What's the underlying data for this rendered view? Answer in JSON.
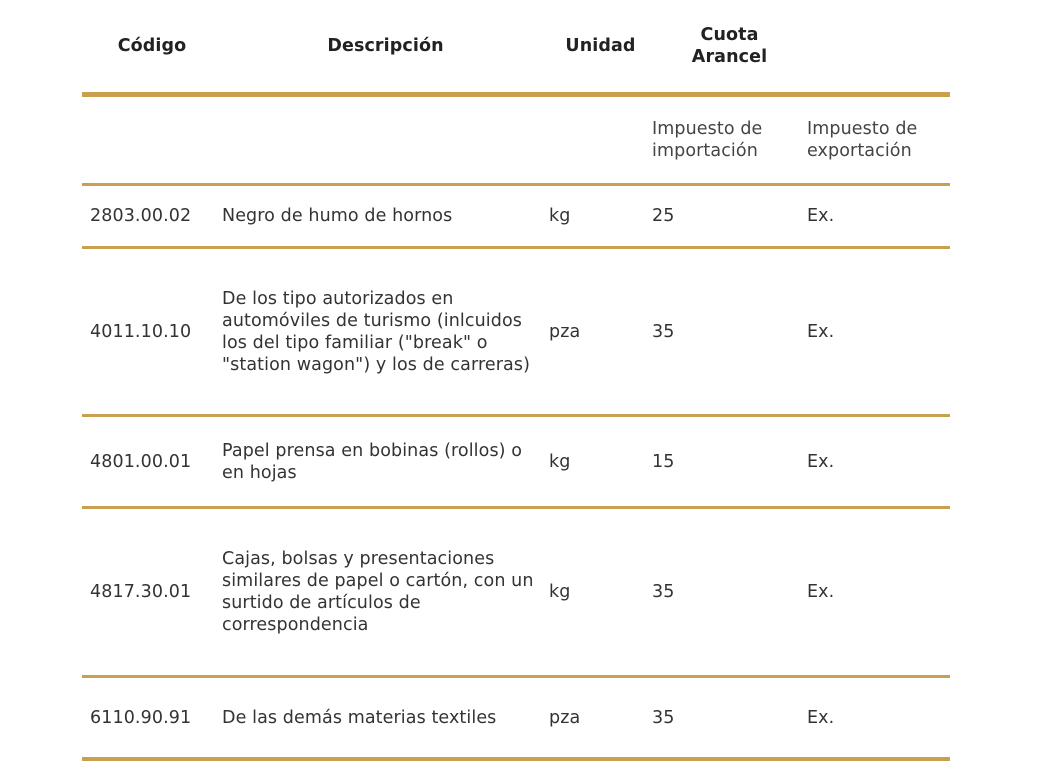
{
  "header": {
    "codigo": "Código",
    "descripcion": "Descripción",
    "unidad": "Unidad",
    "cuota": "Cuota Arancel",
    "blank": ""
  },
  "subheader": {
    "importacion": "Impuesto de importación",
    "exportacion": "Impuesto de exportación"
  },
  "rows": [
    {
      "codigo": "2803.00.02",
      "descripcion": "Negro de humo de hornos",
      "unidad": "kg",
      "importacion": "25",
      "exportacion": "Ex."
    },
    {
      "codigo": "4011.10.10",
      "descripcion": "De los tipo autorizados en automóviles de turismo (inlcuidos los del tipo familiar (\"break\" o \"station wagon\") y los de carreras)",
      "unidad": "pza",
      "importacion": "35",
      "exportacion": "Ex."
    },
    {
      "codigo": "4801.00.01",
      "descripcion": "Papel prensa en bobinas (rollos) o en hojas",
      "unidad": "kg",
      "importacion": "15",
      "exportacion": "Ex."
    },
    {
      "codigo": "4817.30.01",
      "descripcion": "Cajas, bolsas y presentaciones similares de papel o cartón, con un surtido de artículos de correspondencia",
      "unidad": "kg",
      "importacion": "35",
      "exportacion": "Ex."
    },
    {
      "codigo": "6110.90.91",
      "descripcion": "De las demás materias textiles",
      "unidad": "pza",
      "importacion": "35",
      "exportacion": "Ex."
    }
  ],
  "colors": {
    "rule": "#c9a04e",
    "text": "#333333"
  }
}
